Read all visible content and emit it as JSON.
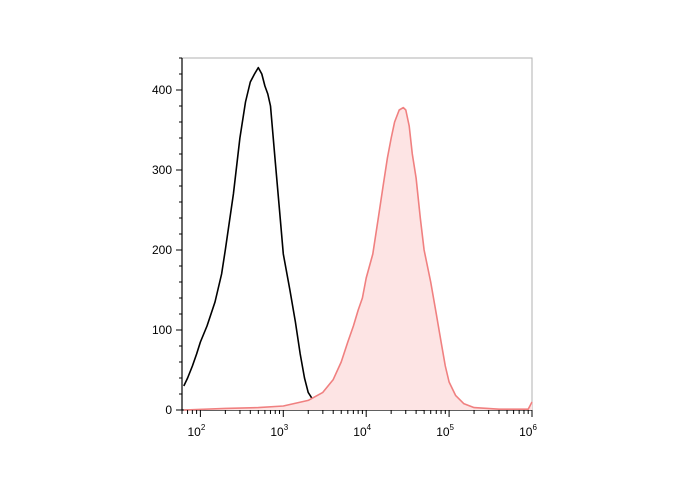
{
  "chart_data": {
    "type": "area",
    "title": "",
    "xlabel": "",
    "ylabel": "",
    "xscale": "log",
    "xlim": [
      60,
      1000000
    ],
    "ylim": [
      0,
      440
    ],
    "grid": false,
    "legend": "none",
    "x_ticks": [
      {
        "base": "10",
        "exp": "2",
        "value": 100
      },
      {
        "base": "10",
        "exp": "3",
        "value": 1000
      },
      {
        "base": "10",
        "exp": "4",
        "value": 10000
      },
      {
        "base": "10",
        "exp": "5",
        "value": 100000
      },
      {
        "base": "10",
        "exp": "6",
        "value": 1000000
      }
    ],
    "y_ticks": [
      {
        "label": "0",
        "value": 0
      },
      {
        "label": "100",
        "value": 100
      },
      {
        "label": "200",
        "value": 200
      },
      {
        "label": "300",
        "value": 300
      },
      {
        "label": "400",
        "value": 400
      }
    ],
    "series": [
      {
        "color": "#000000",
        "fill": "none",
        "points": [
          [
            63,
            30
          ],
          [
            70,
            40
          ],
          [
            80,
            55
          ],
          [
            90,
            70
          ],
          [
            100,
            85
          ],
          [
            120,
            105
          ],
          [
            150,
            135
          ],
          [
            180,
            170
          ],
          [
            200,
            200
          ],
          [
            250,
            270
          ],
          [
            300,
            340
          ],
          [
            350,
            385
          ],
          [
            400,
            410
          ],
          [
            450,
            420
          ],
          [
            500,
            428
          ],
          [
            550,
            420
          ],
          [
            600,
            405
          ],
          [
            650,
            395
          ],
          [
            700,
            380
          ],
          [
            800,
            310
          ],
          [
            900,
            250
          ],
          [
            1000,
            195
          ],
          [
            1200,
            150
          ],
          [
            1400,
            110
          ],
          [
            1600,
            70
          ],
          [
            1800,
            40
          ],
          [
            2000,
            22
          ],
          [
            2300,
            12
          ],
          [
            2800,
            6
          ],
          [
            3500,
            4
          ],
          [
            5000,
            3
          ],
          [
            10000,
            2
          ],
          [
            20000,
            1
          ],
          [
            50000,
            0
          ]
        ]
      },
      {
        "color": "#f08080",
        "fill": "#fde4e4",
        "points": [
          [
            63,
            0
          ],
          [
            200,
            2
          ],
          [
            500,
            3
          ],
          [
            1000,
            5
          ],
          [
            2000,
            12
          ],
          [
            3000,
            22
          ],
          [
            4000,
            38
          ],
          [
            5000,
            60
          ],
          [
            6000,
            85
          ],
          [
            7000,
            105
          ],
          [
            8000,
            125
          ],
          [
            9000,
            140
          ],
          [
            10000,
            165
          ],
          [
            12000,
            195
          ],
          [
            14000,
            240
          ],
          [
            16000,
            280
          ],
          [
            18000,
            315
          ],
          [
            20000,
            340
          ],
          [
            22000,
            360
          ],
          [
            25000,
            375
          ],
          [
            28000,
            378
          ],
          [
            30000,
            375
          ],
          [
            33000,
            355
          ],
          [
            36000,
            320
          ],
          [
            40000,
            290
          ],
          [
            45000,
            240
          ],
          [
            50000,
            200
          ],
          [
            60000,
            160
          ],
          [
            70000,
            120
          ],
          [
            80000,
            85
          ],
          [
            90000,
            55
          ],
          [
            100000,
            35
          ],
          [
            120000,
            18
          ],
          [
            150000,
            8
          ],
          [
            200000,
            3
          ],
          [
            400000,
            1
          ],
          [
            900000,
            1
          ],
          [
            1000000,
            10
          ]
        ]
      }
    ]
  }
}
